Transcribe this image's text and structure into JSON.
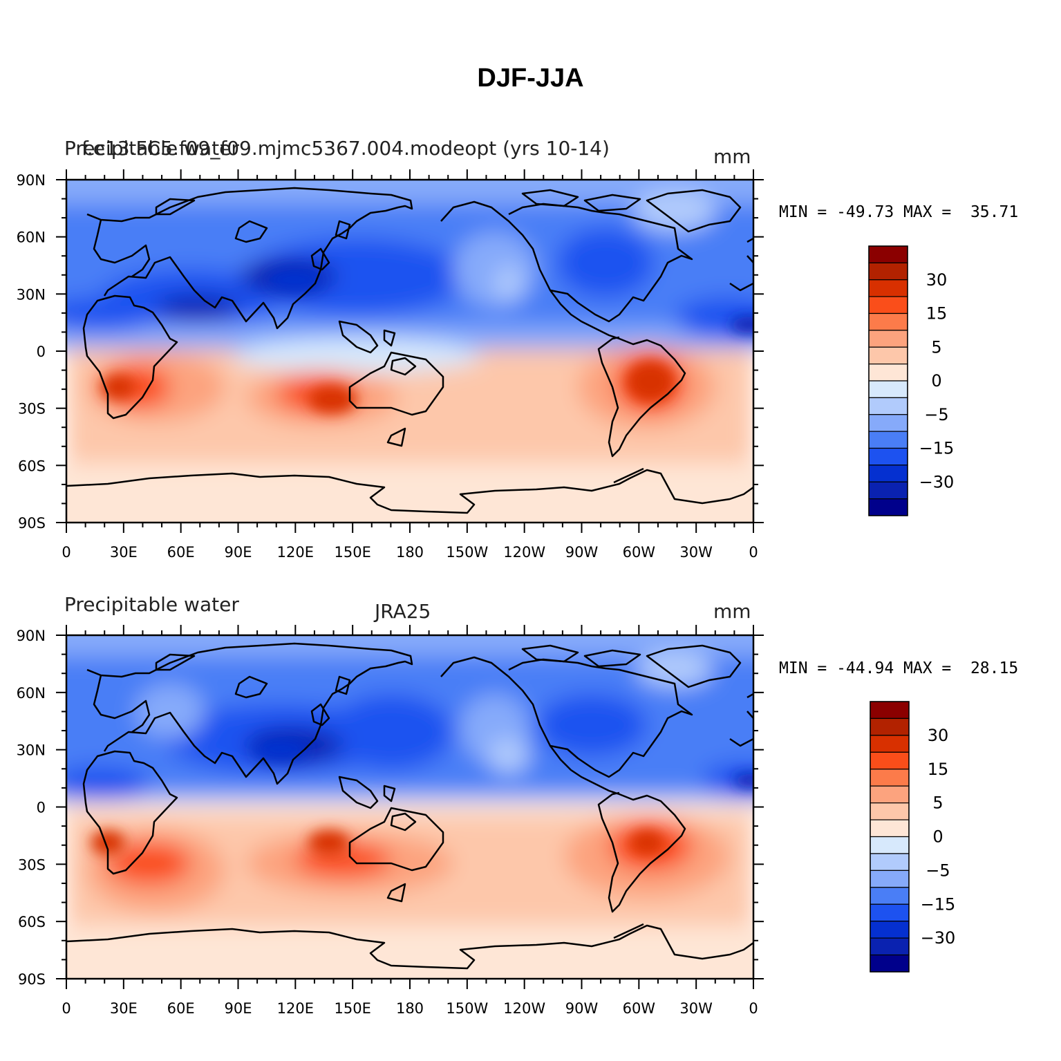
{
  "title": "DJF-JJA",
  "panels": [
    {
      "left_label": "Precipitable water",
      "center_label": "f.e13.FC5.f09_f09.mjmc5367.004.modeopt (yrs 10-14)",
      "units": "mm",
      "minmax": "MIN = -49.73 MAX =  35.71"
    },
    {
      "left_label": "Precipitable water",
      "center_label": "JRA25",
      "units": "mm",
      "minmax": "MIN = -44.94 MAX =  28.15"
    }
  ],
  "axes": {
    "lat_ticks": [
      "90N",
      "60N",
      "30N",
      "0",
      "30S",
      "60S",
      "90S"
    ],
    "lon_ticks": [
      "0",
      "30E",
      "60E",
      "90E",
      "120E",
      "150E",
      "180",
      "150W",
      "120W",
      "90W",
      "60W",
      "30W",
      "0"
    ]
  },
  "colorbar": {
    "labels": [
      "30",
      "15",
      "5",
      "0",
      "-5",
      "-15",
      "-30"
    ],
    "colors": [
      "#8b0000",
      "#b22200",
      "#d83000",
      "#fa4e1a",
      "#fc7b4a",
      "#fca37e",
      "#fdc7aa",
      "#fee6d6",
      "#d7e9fc",
      "#b1cbfc",
      "#86aafa",
      "#4a7ef6",
      "#1d52f0",
      "#0530d0",
      "#0a22b0",
      "#00008b"
    ]
  },
  "chart_data": {
    "type": "heatmap",
    "variable": "Precipitable water",
    "units": "mm",
    "season_difference": "DJF-JJA",
    "lat_range": [
      "90S",
      "90N"
    ],
    "lon_range": [
      "0",
      "0"
    ],
    "contour_levels": [
      -30,
      -15,
      -5,
      0,
      5,
      15,
      30
    ],
    "maps": [
      {
        "source": "f.e13.FC5.f09_f09.mjmc5367.004.modeopt (yrs 10-14)",
        "min": -49.73,
        "max": 35.71
      },
      {
        "source": "JRA25",
        "min": -44.94,
        "max": 28.15
      }
    ]
  }
}
